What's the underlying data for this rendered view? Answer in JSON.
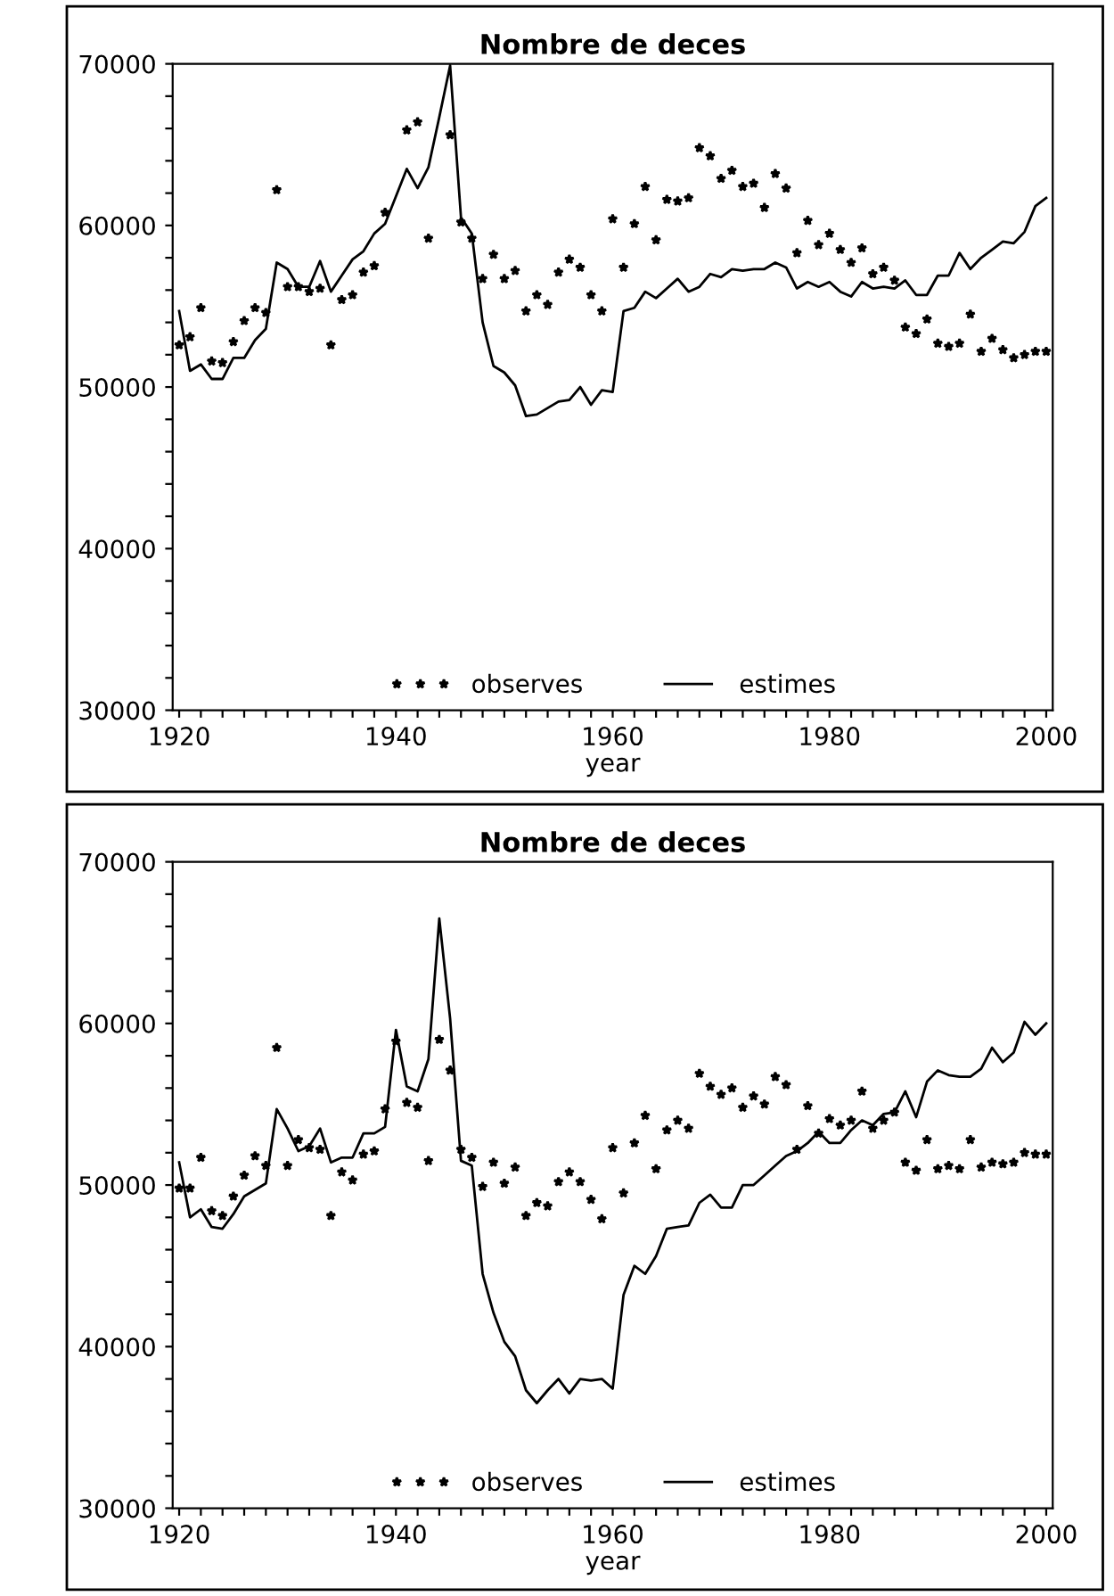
{
  "chart_data": [
    {
      "type": "line",
      "title": "Nombre de deces",
      "xlabel": "year",
      "legend": "bottom",
      "x": [
        1920,
        1921,
        1922,
        1923,
        1924,
        1925,
        1926,
        1927,
        1928,
        1929,
        1930,
        1931,
        1932,
        1933,
        1934,
        1935,
        1936,
        1937,
        1938,
        1939,
        1940,
        1941,
        1942,
        1943,
        1944,
        1945,
        1946,
        1947,
        1948,
        1949,
        1950,
        1951,
        1952,
        1953,
        1954,
        1955,
        1956,
        1957,
        1958,
        1959,
        1960,
        1961,
        1962,
        1963,
        1964,
        1965,
        1966,
        1967,
        1968,
        1969,
        1970,
        1971,
        1972,
        1973,
        1974,
        1975,
        1976,
        1977,
        1978,
        1979,
        1980,
        1981,
        1982,
        1983,
        1984,
        1985,
        1986,
        1987,
        1988,
        1989,
        1990,
        1991,
        1992,
        1993,
        1994,
        1995,
        1996,
        1997,
        1998,
        1999,
        2000
      ],
      "xlim": [
        1919.4,
        2000.6
      ],
      "xticks": [
        1920,
        {
          "value": 1922,
          "label": null
        },
        {
          "value": 1924,
          "label": null
        },
        {
          "value": 1926,
          "label": null
        },
        {
          "value": 1928,
          "label": null
        },
        {
          "value": 1930,
          "label": null
        },
        {
          "value": 1932,
          "label": null
        },
        {
          "value": 1934,
          "label": null
        },
        {
          "value": 1936,
          "label": null
        },
        {
          "value": 1938,
          "label": null
        },
        1940,
        {
          "value": 1942,
          "label": null
        },
        {
          "value": 1944,
          "label": null
        },
        {
          "value": 1946,
          "label": null
        },
        {
          "value": 1948,
          "label": null
        },
        {
          "value": 1950,
          "label": null
        },
        {
          "value": 1952,
          "label": null
        },
        {
          "value": 1954,
          "label": null
        },
        {
          "value": 1956,
          "label": null
        },
        {
          "value": 1958,
          "label": null
        },
        1960,
        {
          "value": 1962,
          "label": null
        },
        {
          "value": 1964,
          "label": null
        },
        {
          "value": 1966,
          "label": null
        },
        {
          "value": 1968,
          "label": null
        },
        {
          "value": 1970,
          "label": null
        },
        {
          "value": 1972,
          "label": null
        },
        {
          "value": 1974,
          "label": null
        },
        {
          "value": 1976,
          "label": null
        },
        {
          "value": 1978,
          "label": null
        },
        1980,
        {
          "value": 1982,
          "label": null
        },
        {
          "value": 1984,
          "label": null
        },
        {
          "value": 1986,
          "label": null
        },
        {
          "value": 1988,
          "label": null
        },
        {
          "value": 1990,
          "label": null
        },
        {
          "value": 1992,
          "label": null
        },
        {
          "value": 1994,
          "label": null
        },
        {
          "value": 1996,
          "label": null
        },
        {
          "value": 1998,
          "label": null
        },
        2000
      ],
      "ylim": [
        30000,
        70000
      ],
      "yticks": [
        30000,
        {
          "value": 32000,
          "label": null
        },
        {
          "value": 34000,
          "label": null
        },
        {
          "value": 36000,
          "label": null
        },
        {
          "value": 38000,
          "label": null
        },
        40000,
        {
          "value": 42000,
          "label": null
        },
        {
          "value": 44000,
          "label": null
        },
        {
          "value": 46000,
          "label": null
        },
        {
          "value": 48000,
          "label": null
        },
        50000,
        {
          "value": 52000,
          "label": null
        },
        {
          "value": 54000,
          "label": null
        },
        {
          "value": 56000,
          "label": null
        },
        {
          "value": 58000,
          "label": null
        },
        60000,
        {
          "value": 62000,
          "label": null
        },
        {
          "value": 64000,
          "label": null
        },
        {
          "value": 66000,
          "label": null
        },
        {
          "value": 68000,
          "label": null
        },
        70000
      ],
      "series": [
        {
          "name": "observes",
          "type": "scatter",
          "marker": "star",
          "color": "#000000",
          "values": [
            52600,
            53100,
            54900,
            51600,
            51500,
            52800,
            54100,
            54900,
            54600,
            62200,
            56200,
            56200,
            55900,
            56100,
            52600,
            55400,
            55700,
            57100,
            57500,
            60800,
            null,
            65900,
            66400,
            59200,
            null,
            65600,
            60200,
            59200,
            56700,
            58200,
            56700,
            57200,
            54700,
            55700,
            55100,
            57100,
            57900,
            57400,
            55700,
            54700,
            60400,
            57400,
            60100,
            62400,
            59100,
            61600,
            61500,
            61700,
            64800,
            64300,
            62900,
            63400,
            62400,
            62600,
            61100,
            63200,
            62300,
            58300,
            60300,
            58800,
            59500,
            58500,
            57700,
            58600,
            57000,
            57400,
            56600,
            53700,
            53300,
            54200,
            52700,
            52500,
            52700,
            54500,
            52200,
            53000,
            52300,
            51800,
            52000,
            52200,
            52200
          ]
        },
        {
          "name": "estimes",
          "line_style": "solid",
          "color": "#000000",
          "values": [
            54700,
            51000,
            51400,
            50500,
            50500,
            51800,
            51800,
            52900,
            53600,
            57700,
            57300,
            56200,
            56200,
            57800,
            55900,
            56900,
            57900,
            58400,
            59500,
            60100,
            61800,
            63500,
            62300,
            63600,
            66700,
            69900,
            60500,
            59500,
            54000,
            51300,
            50900,
            50100,
            48200,
            48300,
            48700,
            49100,
            49200,
            50000,
            48900,
            49800,
            49700,
            54700,
            54900,
            55900,
            55500,
            56100,
            56700,
            55900,
            56200,
            57000,
            56800,
            57300,
            57200,
            57300,
            57300,
            57700,
            57400,
            56100,
            56500,
            56200,
            56500,
            55900,
            55600,
            56500,
            56100,
            56200,
            56100,
            56600,
            55700,
            55700,
            56900,
            56900,
            58300,
            57300,
            58000,
            58500,
            59000,
            58900,
            59600,
            61200,
            61700
          ]
        }
      ]
    },
    {
      "type": "line",
      "title": "Nombre de deces",
      "xlabel": "year",
      "legend": "bottom",
      "x": [
        1920,
        1921,
        1922,
        1923,
        1924,
        1925,
        1926,
        1927,
        1928,
        1929,
        1930,
        1931,
        1932,
        1933,
        1934,
        1935,
        1936,
        1937,
        1938,
        1939,
        1940,
        1941,
        1942,
        1943,
        1944,
        1945,
        1946,
        1947,
        1948,
        1949,
        1950,
        1951,
        1952,
        1953,
        1954,
        1955,
        1956,
        1957,
        1958,
        1959,
        1960,
        1961,
        1962,
        1963,
        1964,
        1965,
        1966,
        1967,
        1968,
        1969,
        1970,
        1971,
        1972,
        1973,
        1974,
        1975,
        1976,
        1977,
        1978,
        1979,
        1980,
        1981,
        1982,
        1983,
        1984,
        1985,
        1986,
        1987,
        1988,
        1989,
        1990,
        1991,
        1992,
        1993,
        1994,
        1995,
        1996,
        1997,
        1998,
        1999,
        2000
      ],
      "xlim": [
        1919.4,
        2000.6
      ],
      "xticks": [
        1920,
        {
          "value": 1922,
          "label": null
        },
        {
          "value": 1924,
          "label": null
        },
        {
          "value": 1926,
          "label": null
        },
        {
          "value": 1928,
          "label": null
        },
        {
          "value": 1930,
          "label": null
        },
        {
          "value": 1932,
          "label": null
        },
        {
          "value": 1934,
          "label": null
        },
        {
          "value": 1936,
          "label": null
        },
        {
          "value": 1938,
          "label": null
        },
        1940,
        {
          "value": 1942,
          "label": null
        },
        {
          "value": 1944,
          "label": null
        },
        {
          "value": 1946,
          "label": null
        },
        {
          "value": 1948,
          "label": null
        },
        {
          "value": 1950,
          "label": null
        },
        {
          "value": 1952,
          "label": null
        },
        {
          "value": 1954,
          "label": null
        },
        {
          "value": 1956,
          "label": null
        },
        {
          "value": 1958,
          "label": null
        },
        1960,
        {
          "value": 1962,
          "label": null
        },
        {
          "value": 1964,
          "label": null
        },
        {
          "value": 1966,
          "label": null
        },
        {
          "value": 1968,
          "label": null
        },
        {
          "value": 1970,
          "label": null
        },
        {
          "value": 1972,
          "label": null
        },
        {
          "value": 1974,
          "label": null
        },
        {
          "value": 1976,
          "label": null
        },
        {
          "value": 1978,
          "label": null
        },
        1980,
        {
          "value": 1982,
          "label": null
        },
        {
          "value": 1984,
          "label": null
        },
        {
          "value": 1986,
          "label": null
        },
        {
          "value": 1988,
          "label": null
        },
        {
          "value": 1990,
          "label": null
        },
        {
          "value": 1992,
          "label": null
        },
        {
          "value": 1994,
          "label": null
        },
        {
          "value": 1996,
          "label": null
        },
        {
          "value": 1998,
          "label": null
        },
        2000
      ],
      "ylim": [
        30000,
        70000
      ],
      "yticks": [
        30000,
        {
          "value": 32000,
          "label": null
        },
        {
          "value": 34000,
          "label": null
        },
        {
          "value": 36000,
          "label": null
        },
        {
          "value": 38000,
          "label": null
        },
        40000,
        {
          "value": 42000,
          "label": null
        },
        {
          "value": 44000,
          "label": null
        },
        {
          "value": 46000,
          "label": null
        },
        {
          "value": 48000,
          "label": null
        },
        50000,
        {
          "value": 52000,
          "label": null
        },
        {
          "value": 54000,
          "label": null
        },
        {
          "value": 56000,
          "label": null
        },
        {
          "value": 58000,
          "label": null
        },
        60000,
        {
          "value": 62000,
          "label": null
        },
        {
          "value": 64000,
          "label": null
        },
        {
          "value": 66000,
          "label": null
        },
        {
          "value": 68000,
          "label": null
        },
        70000
      ],
      "series": [
        {
          "name": "observes",
          "type": "scatter",
          "marker": "star",
          "color": "#000000",
          "values": [
            49800,
            49800,
            51700,
            48400,
            48100,
            49300,
            50600,
            51800,
            51200,
            58500,
            51200,
            52800,
            52300,
            52200,
            48100,
            50800,
            50300,
            51900,
            52100,
            54700,
            58900,
            55100,
            54800,
            51500,
            59000,
            57100,
            52200,
            51700,
            49900,
            51400,
            50100,
            51100,
            48100,
            48900,
            48700,
            50200,
            50800,
            50200,
            49100,
            47900,
            52300,
            49500,
            52600,
            54300,
            51000,
            53400,
            54000,
            53500,
            56900,
            56100,
            55600,
            56000,
            54800,
            55500,
            55000,
            56700,
            56200,
            52200,
            54900,
            53200,
            54100,
            53700,
            54000,
            55800,
            53500,
            54000,
            54500,
            51400,
            50900,
            52800,
            51000,
            51200,
            51000,
            52800,
            51100,
            51400,
            51300,
            51400,
            52000,
            51900,
            51900
          ]
        },
        {
          "name": "estimes",
          "line_style": "solid",
          "color": "#000000",
          "values": [
            51400,
            48000,
            48500,
            47400,
            47300,
            48200,
            49300,
            49700,
            50100,
            54700,
            53500,
            52100,
            52400,
            53500,
            51400,
            51700,
            51700,
            53200,
            53200,
            53600,
            59600,
            56100,
            55800,
            57800,
            66500,
            60300,
            51500,
            51200,
            44500,
            42100,
            40300,
            39400,
            37300,
            36500,
            37300,
            38000,
            37100,
            38000,
            37900,
            38000,
            37400,
            43200,
            45000,
            44500,
            45600,
            47300,
            47400,
            47500,
            48900,
            49400,
            48600,
            48600,
            50000,
            50000,
            50600,
            51200,
            51800,
            52100,
            52600,
            53300,
            52600,
            52600,
            53400,
            54000,
            53700,
            54400,
            54500,
            55800,
            54200,
            56400,
            57100,
            56800,
            56700,
            56700,
            57200,
            58500,
            57600,
            58200,
            60100,
            59300,
            60000
          ]
        }
      ]
    }
  ]
}
